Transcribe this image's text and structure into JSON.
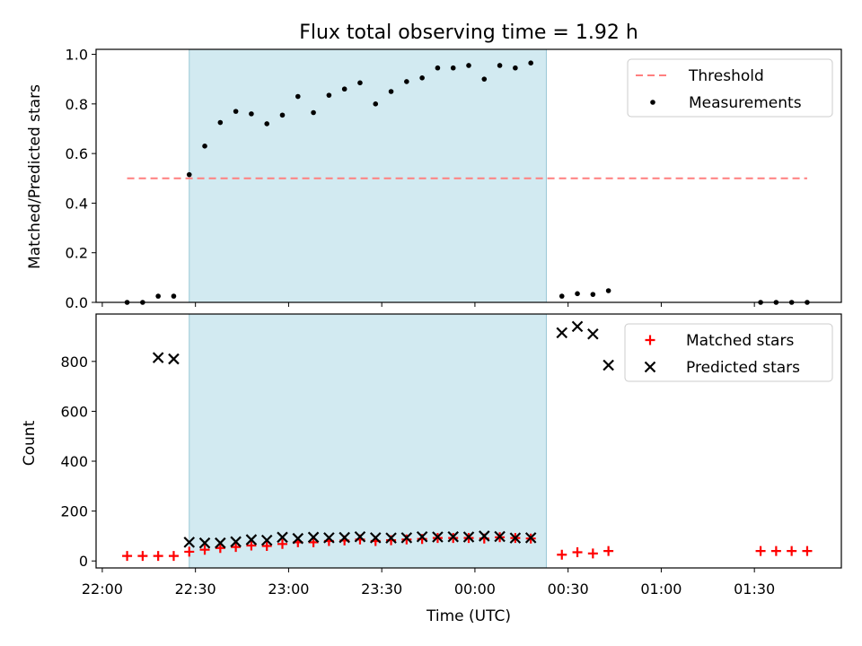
{
  "chart_data": [
    {
      "type": "scatter",
      "title": "Flux total observing time = 1.92 h",
      "xlabel": "",
      "ylabel": "Matched/Predicted stars",
      "ylim": [
        0,
        1.02
      ],
      "yticks": [
        0.0,
        0.2,
        0.4,
        0.6,
        0.8,
        1.0
      ],
      "ytick_labels": [
        "0.0",
        "0.2",
        "0.4",
        "0.6",
        "0.8",
        "1.0"
      ],
      "xlim": [
        -2,
        238
      ],
      "shaded_region": {
        "from": 28,
        "to": 143,
        "color": "#add8e6"
      },
      "legend": {
        "placement": "top-right",
        "entries": [
          "Threshold",
          "Measurements"
        ]
      },
      "threshold": {
        "name": "Threshold",
        "value": 0.5,
        "x_from": 8,
        "x_to": 227,
        "color": "#ff7f7f",
        "style": "dashed"
      },
      "series": [
        {
          "name": "Measurements",
          "marker": "dot",
          "color": "#000000",
          "x": [
            8,
            13,
            18,
            23,
            28,
            33,
            38,
            43,
            48,
            53,
            58,
            63,
            68,
            73,
            78,
            83,
            88,
            93,
            98,
            103,
            108,
            113,
            118,
            123,
            128,
            133,
            138,
            148,
            153,
            158,
            163,
            212,
            217,
            222,
            227
          ],
          "y": [
            0.0,
            0.0,
            0.025,
            0.025,
            0.515,
            0.63,
            0.725,
            0.77,
            0.76,
            0.72,
            0.755,
            0.83,
            0.765,
            0.835,
            0.86,
            0.885,
            0.8,
            0.85,
            0.89,
            0.905,
            0.945,
            0.945,
            0.955,
            0.9,
            0.955,
            0.945,
            0.965,
            0.025,
            0.035,
            0.032,
            0.047,
            0.0,
            0.0,
            0.0,
            0.0
          ]
        }
      ]
    },
    {
      "type": "scatter",
      "title": "",
      "xlabel": "Time (UTC)",
      "ylabel": "Count",
      "ylim": [
        -28,
        990
      ],
      "yticks": [
        0,
        200,
        400,
        600,
        800
      ],
      "ytick_labels": [
        "0",
        "200",
        "400",
        "600",
        "800"
      ],
      "xlim": [
        -2,
        238
      ],
      "xticks": [
        0,
        30,
        60,
        90,
        120,
        150,
        180,
        210
      ],
      "xtick_labels": [
        "22:00",
        "22:30",
        "23:00",
        "23:30",
        "00:00",
        "00:30",
        "01:00",
        "01:30"
      ],
      "shaded_region": {
        "from": 28,
        "to": 143,
        "color": "#add8e6"
      },
      "legend": {
        "placement": "top-right",
        "entries": [
          "Matched stars",
          "Predicted stars"
        ]
      },
      "series": [
        {
          "name": "Matched stars",
          "marker": "plus",
          "color": "#ff0000",
          "x": [
            8,
            13,
            18,
            23,
            28,
            33,
            38,
            43,
            48,
            53,
            58,
            63,
            68,
            73,
            78,
            83,
            88,
            93,
            98,
            103,
            108,
            113,
            118,
            123,
            128,
            133,
            138,
            148,
            153,
            158,
            163,
            212,
            217,
            222,
            227
          ],
          "y": [
            20,
            20,
            20,
            20,
            37,
            45,
            52,
            56,
            62,
            60,
            68,
            75,
            75,
            80,
            82,
            86,
            80,
            83,
            86,
            88,
            92,
            92,
            92,
            90,
            95,
            92,
            90,
            25,
            35,
            30,
            40,
            40,
            40,
            40,
            40
          ]
        },
        {
          "name": "Predicted stars",
          "marker": "x",
          "color": "#000000",
          "x": [
            18,
            23,
            28,
            33,
            38,
            43,
            48,
            53,
            58,
            63,
            68,
            73,
            78,
            83,
            88,
            93,
            98,
            103,
            108,
            113,
            118,
            123,
            128,
            133,
            138,
            148,
            153,
            158,
            163
          ],
          "y": [
            815,
            810,
            75,
            72,
            72,
            77,
            85,
            83,
            95,
            90,
            95,
            93,
            94,
            97,
            93,
            92,
            93,
            97,
            96,
            97,
            96,
            100,
            98,
            92,
            93,
            915,
            940,
            910,
            785
          ]
        }
      ]
    }
  ]
}
